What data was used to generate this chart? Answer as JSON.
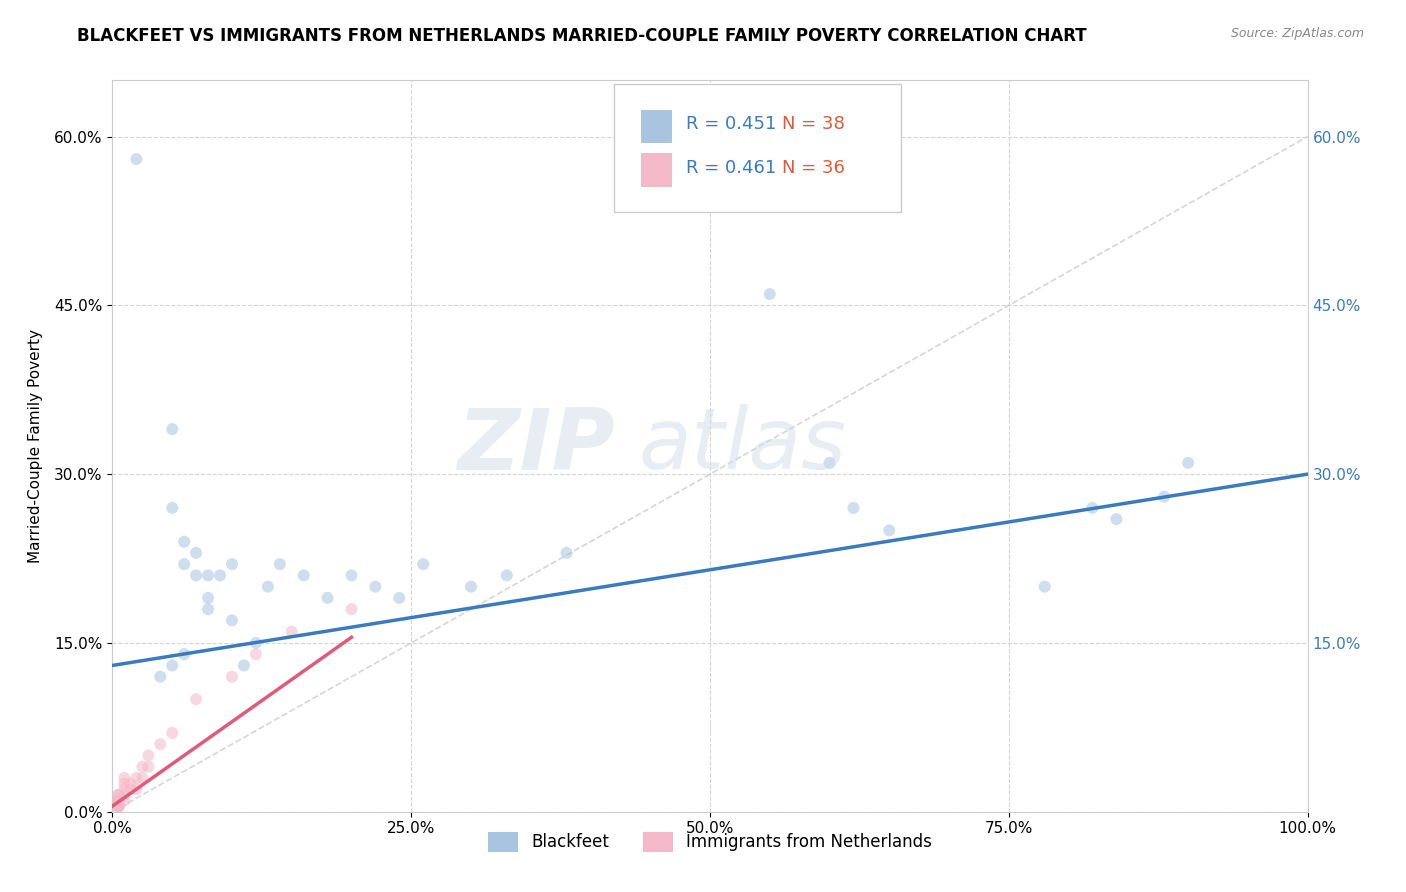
{
  "title": "BLACKFEET VS IMMIGRANTS FROM NETHERLANDS MARRIED-COUPLE FAMILY POVERTY CORRELATION CHART",
  "source": "Source: ZipAtlas.com",
  "ylabel_label": "Married-Couple Family Poverty",
  "series1_label": "Blackfeet",
  "series2_label": "Immigrants from Netherlands",
  "color1": "#a8c4e0",
  "color2": "#f4b8c8",
  "line1_color": "#3a7bbf",
  "line2_color": "#e05a7a",
  "watermark_zip": "ZIP",
  "watermark_atlas": "atlas",
  "background_color": "#ffffff",
  "grid_color": "#d0d0d0",
  "xmin": 0.0,
  "xmax": 1.0,
  "ymin": 0.0,
  "ymax": 0.65,
  "line1_x0": 0.0,
  "line1_y0": 0.13,
  "line1_x1": 1.0,
  "line1_y1": 0.3,
  "line2_x0": 0.0,
  "line2_y0": 0.005,
  "line2_x1": 0.2,
  "line2_y1": 0.155,
  "scatter1_x": [
    0.02,
    0.05,
    0.05,
    0.06,
    0.06,
    0.07,
    0.07,
    0.08,
    0.08,
    0.08,
    0.09,
    0.1,
    0.1,
    0.11,
    0.12,
    0.13,
    0.14,
    0.16,
    0.18,
    0.2,
    0.22,
    0.24,
    0.26,
    0.3,
    0.33,
    0.38,
    0.55,
    0.6,
    0.62,
    0.65,
    0.78,
    0.82,
    0.84,
    0.88,
    0.9,
    0.06,
    0.05,
    0.04
  ],
  "scatter1_y": [
    0.58,
    0.34,
    0.27,
    0.24,
    0.22,
    0.23,
    0.21,
    0.21,
    0.19,
    0.18,
    0.21,
    0.17,
    0.22,
    0.13,
    0.15,
    0.2,
    0.22,
    0.21,
    0.19,
    0.21,
    0.2,
    0.19,
    0.22,
    0.2,
    0.21,
    0.23,
    0.46,
    0.31,
    0.27,
    0.25,
    0.2,
    0.27,
    0.26,
    0.28,
    0.31,
    0.14,
    0.13,
    0.12
  ],
  "scatter2_x": [
    0.005,
    0.005,
    0.005,
    0.005,
    0.005,
    0.005,
    0.005,
    0.005,
    0.005,
    0.005,
    0.005,
    0.005,
    0.005,
    0.005,
    0.005,
    0.005,
    0.01,
    0.01,
    0.01,
    0.01,
    0.01,
    0.015,
    0.015,
    0.02,
    0.02,
    0.025,
    0.025,
    0.03,
    0.03,
    0.04,
    0.05,
    0.07,
    0.1,
    0.12,
    0.15,
    0.2
  ],
  "scatter2_y": [
    0.005,
    0.005,
    0.005,
    0.005,
    0.005,
    0.005,
    0.005,
    0.005,
    0.005,
    0.01,
    0.01,
    0.01,
    0.01,
    0.01,
    0.015,
    0.015,
    0.01,
    0.015,
    0.02,
    0.025,
    0.03,
    0.02,
    0.025,
    0.02,
    0.03,
    0.03,
    0.04,
    0.04,
    0.05,
    0.06,
    0.07,
    0.1,
    0.12,
    0.14,
    0.16,
    0.18
  ],
  "title_fontsize": 12,
  "axis_fontsize": 11,
  "tick_fontsize": 11,
  "scatter_size": 75,
  "scatter_alpha": 0.55,
  "line_width": 2.5
}
